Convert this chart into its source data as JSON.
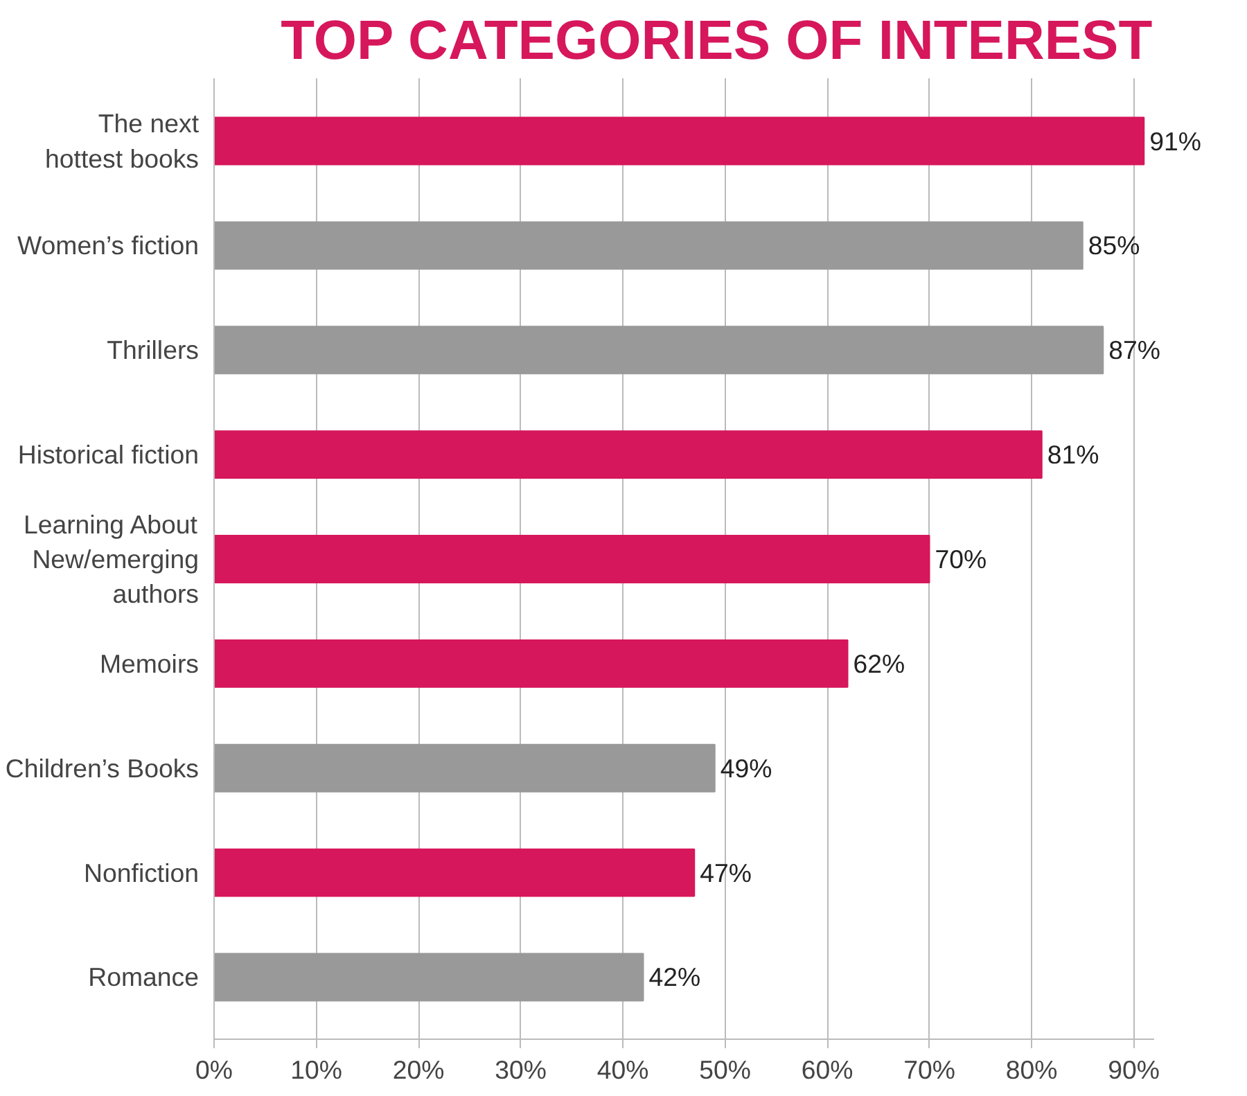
{
  "chart_data": {
    "type": "bar",
    "orientation": "horizontal",
    "title": "TOP CATEGORIES OF INTEREST",
    "categories": [
      "The next\nhottest books",
      "Women’s fiction",
      "Thrillers",
      "Historical fiction",
      "Learning About\nNew/emerging\nauthors",
      "Memoirs",
      "Children’s Books",
      "Nonfiction",
      "Romance"
    ],
    "values": [
      91,
      85,
      87,
      81,
      70,
      62,
      49,
      47,
      42
    ],
    "value_labels": [
      "91%",
      "85%",
      "87%",
      "81%",
      "70%",
      "62%",
      "49%",
      "47%",
      "42%"
    ],
    "colors": [
      "#d6175b",
      "#999999",
      "#999999",
      "#d6175b",
      "#d6175b",
      "#d6175b",
      "#999999",
      "#d6175b",
      "#999999"
    ],
    "xlim": [
      0,
      92
    ],
    "xticks": [
      {
        "value": 0,
        "label": "0%"
      },
      {
        "value": 10,
        "label": "10%"
      },
      {
        "value": 20,
        "label": "20%"
      },
      {
        "value": 30,
        "label": "30%"
      },
      {
        "value": 40,
        "label": "40%"
      },
      {
        "value": 50,
        "label": "50%"
      },
      {
        "value": 60,
        "label": "60%"
      },
      {
        "value": 70,
        "label": "70%"
      },
      {
        "value": 80,
        "label": "80%"
      },
      {
        "value": 90,
        "label": "90%"
      }
    ],
    "grid": "x"
  }
}
